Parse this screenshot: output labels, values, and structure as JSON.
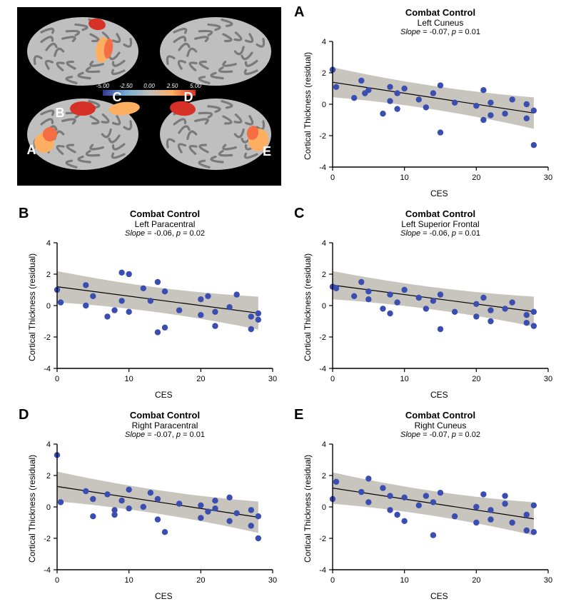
{
  "brain_panel": {
    "background": "#000000",
    "brain_base": "#bfbfbf",
    "brain_sulci": "#7a7a7a",
    "activation_warm": [
      "#fdae61",
      "#f46d43",
      "#d73027"
    ],
    "activation_cool": [
      "#74add1",
      "#4575b4",
      "#313695"
    ],
    "colorbar": {
      "min": -5.0,
      "max": 5.0,
      "ticks": [
        "-5.00",
        "-2.50",
        "0.00",
        "2.50",
        "5.00"
      ],
      "stops": [
        "#313695",
        "#74add1",
        "#bfbfbf",
        "#fdae61",
        "#d73027"
      ]
    },
    "labels": [
      "A",
      "B",
      "C",
      "D",
      "E"
    ],
    "label_color": "#ffffff",
    "label_fontsize": 18
  },
  "chart_defaults": {
    "xlabel": "CES",
    "ylabel": "Cortical Thickness (residual)",
    "group_label": "Combat Control",
    "xlim": [
      0,
      30
    ],
    "ylim": [
      -4,
      4
    ],
    "xticks": [
      0,
      10,
      20,
      30
    ],
    "yticks": [
      -4,
      -2,
      0,
      2,
      4
    ],
    "marker_color": "#3a4db0",
    "marker_radius": 4.2,
    "line_color": "#000000",
    "line_width": 1.2,
    "ci_fill": "#b5b0a8",
    "ci_opacity": 0.75,
    "background": "#ffffff",
    "axis_color": "#000000",
    "tick_fontsize": 11,
    "label_fontsize": 12,
    "title_fontsize": 13,
    "subtitle_fontsize": 12,
    "stats_fontsize": 11
  },
  "charts": {
    "A": {
      "letter": "A",
      "region": "Left Cuneus",
      "slope": -0.07,
      "p": 0.01,
      "intercept": 1.4,
      "ci_half_start": 0.95,
      "ci_half_end": 1.0,
      "points": [
        [
          0,
          2.2
        ],
        [
          0.5,
          1.1
        ],
        [
          3,
          0.4
        ],
        [
          4,
          1.5
        ],
        [
          4.5,
          0.7
        ],
        [
          5,
          0.9
        ],
        [
          7,
          -0.6
        ],
        [
          8,
          0.2
        ],
        [
          8,
          1.1
        ],
        [
          9,
          0.7
        ],
        [
          9,
          -0.3
        ],
        [
          10,
          1.0
        ],
        [
          12,
          0.3
        ],
        [
          13,
          -0.2
        ],
        [
          14,
          0.7
        ],
        [
          15,
          1.2
        ],
        [
          15,
          -1.8
        ],
        [
          17,
          0.1
        ],
        [
          20,
          -0.1
        ],
        [
          21,
          -1.0
        ],
        [
          21,
          0.9
        ],
        [
          22,
          0.1
        ],
        [
          22,
          -0.7
        ],
        [
          24,
          -0.6
        ],
        [
          25,
          0.3
        ],
        [
          27,
          0.0
        ],
        [
          27,
          -0.9
        ],
        [
          28,
          -0.4
        ],
        [
          28,
          -2.6
        ]
      ]
    },
    "B": {
      "letter": "B",
      "region": "Left Paracentral",
      "slope": -0.06,
      "p": 0.02,
      "intercept": 1.2,
      "ci_half_start": 1.0,
      "ci_half_end": 1.05,
      "points": [
        [
          0,
          1.0
        ],
        [
          0.5,
          0.2
        ],
        [
          4,
          0.0
        ],
        [
          4,
          1.3
        ],
        [
          5,
          0.6
        ],
        [
          7,
          -0.7
        ],
        [
          8,
          -0.3
        ],
        [
          9,
          2.1
        ],
        [
          9,
          0.3
        ],
        [
          10,
          2.0
        ],
        [
          10,
          -0.4
        ],
        [
          12,
          1.1
        ],
        [
          13,
          0.3
        ],
        [
          14,
          -1.7
        ],
        [
          14,
          1.5
        ],
        [
          15,
          0.9
        ],
        [
          15,
          -1.4
        ],
        [
          17,
          -0.3
        ],
        [
          20,
          -0.6
        ],
        [
          20,
          0.4
        ],
        [
          21,
          0.6
        ],
        [
          22,
          -0.4
        ],
        [
          22,
          -1.3
        ],
        [
          24,
          -0.1
        ],
        [
          25,
          0.7
        ],
        [
          27,
          -1.5
        ],
        [
          27,
          -0.7
        ],
        [
          28,
          -0.5
        ],
        [
          28,
          -0.9
        ]
      ]
    },
    "C": {
      "letter": "C",
      "region": "Left Superior Frontal",
      "slope": -0.06,
      "p": 0.01,
      "intercept": 1.3,
      "ci_half_start": 0.9,
      "ci_half_end": 0.95,
      "points": [
        [
          0,
          1.2
        ],
        [
          0.5,
          1.1
        ],
        [
          3,
          0.6
        ],
        [
          4,
          1.5
        ],
        [
          5,
          0.9
        ],
        [
          5,
          0.4
        ],
        [
          7,
          -0.2
        ],
        [
          8,
          0.7
        ],
        [
          8,
          -0.5
        ],
        [
          9,
          0.2
        ],
        [
          10,
          1.0
        ],
        [
          12,
          0.5
        ],
        [
          13,
          -0.2
        ],
        [
          14,
          0.3
        ],
        [
          15,
          0.7
        ],
        [
          15,
          -1.5
        ],
        [
          17,
          -0.4
        ],
        [
          20,
          0.1
        ],
        [
          20,
          -0.7
        ],
        [
          21,
          0.5
        ],
        [
          22,
          -0.3
        ],
        [
          22,
          -1.0
        ],
        [
          24,
          -0.2
        ],
        [
          25,
          0.2
        ],
        [
          27,
          -0.6
        ],
        [
          27,
          -1.1
        ],
        [
          28,
          -0.4
        ],
        [
          28,
          -1.3
        ]
      ]
    },
    "D": {
      "letter": "D",
      "region": "Right Paracentral",
      "slope": -0.07,
      "p": 0.01,
      "intercept": 1.3,
      "ci_half_start": 0.95,
      "ci_half_end": 1.0,
      "points": [
        [
          0,
          3.3
        ],
        [
          0.5,
          0.3
        ],
        [
          4,
          1.0
        ],
        [
          5,
          0.5
        ],
        [
          5,
          -0.6
        ],
        [
          7,
          0.8
        ],
        [
          8,
          -0.2
        ],
        [
          8,
          -0.5
        ],
        [
          9,
          0.4
        ],
        [
          10,
          1.1
        ],
        [
          10,
          -0.1
        ],
        [
          12,
          0.0
        ],
        [
          13,
          0.9
        ],
        [
          14,
          0.5
        ],
        [
          14,
          -0.8
        ],
        [
          15,
          -1.6
        ],
        [
          17,
          0.2
        ],
        [
          20,
          -0.7
        ],
        [
          20,
          0.1
        ],
        [
          21,
          -0.3
        ],
        [
          22,
          0.4
        ],
        [
          22,
          -0.1
        ],
        [
          24,
          0.6
        ],
        [
          24,
          -0.9
        ],
        [
          25,
          -0.4
        ],
        [
          27,
          -0.2
        ],
        [
          27,
          -1.2
        ],
        [
          28,
          -0.6
        ],
        [
          28,
          -2.0
        ]
      ]
    },
    "E": {
      "letter": "E",
      "region": "Right Cuneus",
      "slope": -0.07,
      "p": 0.02,
      "intercept": 1.2,
      "ci_half_start": 1.0,
      "ci_half_end": 1.05,
      "points": [
        [
          0,
          0.5
        ],
        [
          0.5,
          1.6
        ],
        [
          4,
          0.95
        ],
        [
          5,
          1.8
        ],
        [
          5,
          0.3
        ],
        [
          7,
          1.2
        ],
        [
          8,
          -0.2
        ],
        [
          8,
          0.7
        ],
        [
          9,
          -0.5
        ],
        [
          10,
          0.6
        ],
        [
          10,
          -0.9
        ],
        [
          12,
          0.1
        ],
        [
          13,
          0.7
        ],
        [
          14,
          -1.8
        ],
        [
          14,
          0.3
        ],
        [
          15,
          0.9
        ],
        [
          17,
          -0.6
        ],
        [
          20,
          0.0
        ],
        [
          20,
          -1.0
        ],
        [
          21,
          0.8
        ],
        [
          22,
          -0.2
        ],
        [
          22,
          -0.8
        ],
        [
          24,
          0.7
        ],
        [
          24,
          0.2
        ],
        [
          25,
          -1.0
        ],
        [
          27,
          -1.5
        ],
        [
          27,
          -0.5
        ],
        [
          28,
          -1.6
        ],
        [
          28,
          0.1
        ]
      ]
    }
  }
}
